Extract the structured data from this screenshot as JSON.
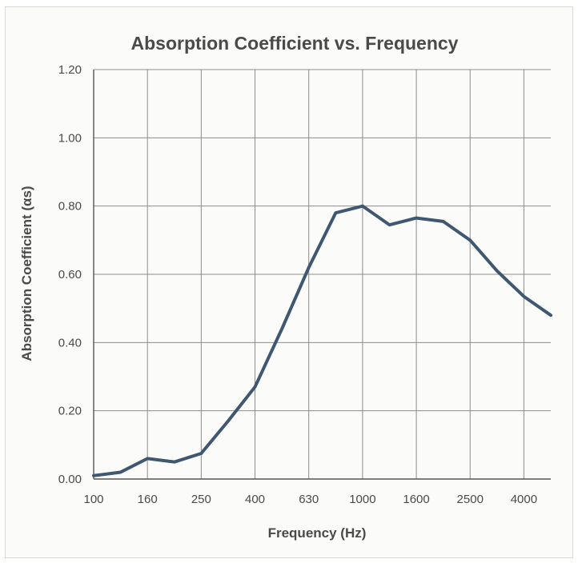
{
  "chart_data": {
    "type": "line",
    "title": "Absorption Coefficient vs. Frequency",
    "xlabel": "Frequency (Hz)",
    "ylabel": "Absorption Coefficient (αs)",
    "ylim": [
      0,
      1.2
    ],
    "yticks": [
      "0.00",
      "0.20",
      "0.40",
      "0.60",
      "0.80",
      "1.00",
      "1.20"
    ],
    "xticks": [
      "100",
      "160",
      "250",
      "400",
      "630",
      "1000",
      "1600",
      "2500",
      "4000"
    ],
    "grid": true,
    "x": [
      "100",
      "125",
      "160",
      "200",
      "250",
      "315",
      "400",
      "500",
      "630",
      "800",
      "1000",
      "1250",
      "1600",
      "2000",
      "2500",
      "3150",
      "4000",
      "5000"
    ],
    "series": [
      {
        "values": [
          0.01,
          0.02,
          0.06,
          0.05,
          0.075,
          0.17,
          0.27,
          0.44,
          0.62,
          0.78,
          0.8,
          0.745,
          0.765,
          0.755,
          0.7,
          0.61,
          0.535,
          0.48
        ],
        "color": "#3f5770"
      }
    ]
  }
}
